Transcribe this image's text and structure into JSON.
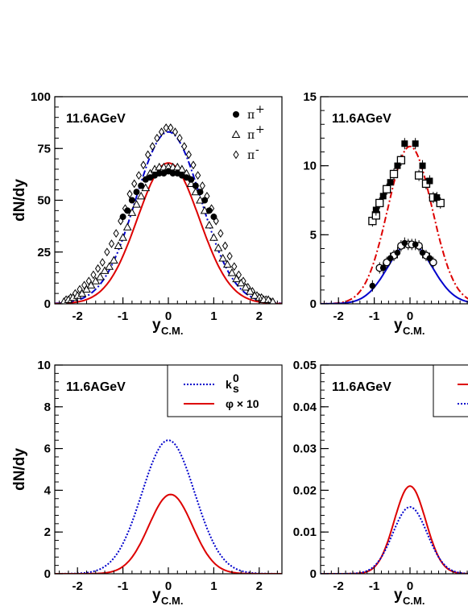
{
  "chart_data": [
    {
      "type": "scatter",
      "ylabel": "dN/dy",
      "xlabel": "y",
      "xlabel_sub": "C.M.",
      "annotation": "11.6AGeV",
      "xlim": [
        -2.5,
        2.5
      ],
      "ylim": [
        0,
        100
      ],
      "xticks": [
        "-2",
        "-1",
        "0",
        "1",
        "2"
      ],
      "yticks": [
        "0",
        "25",
        "50",
        "75",
        "100"
      ],
      "legend": [
        {
          "marker": "circle",
          "label": "π",
          "sup": "+"
        },
        {
          "marker": "triangle",
          "label": "π",
          "sup": "+"
        },
        {
          "marker": "diamond",
          "label": "π",
          "sup": "-"
        }
      ],
      "series": [
        {
          "marker": "diamond",
          "x": [
            -2.25,
            -2.15,
            -2.05,
            -1.95,
            -1.85,
            -1.75,
            -1.65,
            -1.55,
            -1.45,
            -1.35,
            -1.25,
            -1.15,
            -1.05,
            -0.95,
            -0.85,
            -0.75,
            -0.65,
            -0.55,
            -0.45,
            -0.35,
            -0.25,
            -0.15,
            -0.05,
            0.05,
            0.15,
            0.25,
            0.35,
            0.45,
            0.55,
            0.65,
            0.75,
            0.85,
            0.95,
            1.05,
            1.15,
            1.25,
            1.35,
            1.45,
            1.55,
            1.65,
            1.75,
            1.85,
            1.95,
            2.05,
            2.15,
            2.25
          ],
          "y": [
            2,
            3,
            5,
            7,
            9,
            11,
            14,
            17,
            20,
            25,
            29,
            34,
            40,
            46,
            53,
            58,
            62,
            67,
            72,
            76,
            80,
            83,
            85,
            85,
            83,
            80,
            76,
            72,
            67,
            62,
            57,
            52,
            46,
            40,
            34,
            28,
            23,
            18,
            14,
            11,
            8,
            6,
            4,
            3,
            2,
            1
          ]
        },
        {
          "marker": "triangle",
          "x": [
            -2.3,
            -2.2,
            -2.1,
            -2.0,
            -1.9,
            -1.8,
            -1.7,
            -1.6,
            -1.5,
            -1.4,
            -1.3,
            -1.2,
            -1.1,
            -1.0,
            -0.9,
            -0.8,
            -0.7,
            -0.6,
            -0.5,
            -0.4,
            -0.3,
            -0.2,
            -0.1,
            0.0,
            0.1,
            0.2,
            0.3,
            0.4,
            0.5,
            0.6,
            0.7,
            0.8,
            0.9,
            1.0,
            1.1,
            1.2,
            1.3,
            1.4,
            1.5,
            1.6,
            1.7,
            1.8,
            1.9,
            2.0,
            2.1,
            2.2,
            2.3
          ],
          "y": [
            1,
            2,
            3,
            4,
            5,
            7,
            9,
            11,
            13,
            16,
            18,
            21,
            28,
            32,
            37,
            44,
            48,
            52,
            56,
            63,
            65,
            66,
            66,
            66,
            66,
            66,
            65,
            63,
            58,
            54,
            50,
            45,
            38,
            32,
            27,
            22,
            19,
            15,
            12,
            10,
            8,
            6,
            4,
            3,
            2,
            2,
            1
          ]
        },
        {
          "marker": "circle",
          "x": [
            -1.0,
            -0.9,
            -0.8,
            -0.7,
            -0.6,
            -0.5,
            -0.4,
            -0.3,
            -0.2,
            -0.1,
            0.0,
            0.1,
            0.2,
            0.3,
            0.4,
            0.5,
            0.6,
            0.7,
            0.8,
            0.9,
            1.0
          ],
          "y": [
            42,
            45,
            50,
            54,
            57,
            60,
            61,
            62,
            63,
            63,
            64,
            63,
            63,
            62,
            61,
            60,
            57,
            54,
            50,
            45,
            42
          ]
        }
      ],
      "curves": [
        {
          "style": "dashdot",
          "color": "#0000cc",
          "sigma": 0.72,
          "peak": 83
        },
        {
          "style": "solid",
          "color": "#dd0000",
          "sigma": 0.68,
          "peak": 68
        }
      ]
    },
    {
      "type": "scatter",
      "xlabel": "y",
      "xlabel_sub": "C.M.",
      "annotation": "11.6AGeV",
      "xlim": [
        -2.5,
        2.5
      ],
      "ylim": [
        0,
        15
      ],
      "xticks": [
        "-2",
        "-1",
        "0"
      ],
      "yticks": [
        "0",
        "5",
        "10",
        "15"
      ],
      "series": [
        {
          "marker": "square-open",
          "x": [
            -1.05,
            -0.95,
            -0.85,
            -0.65,
            -0.45,
            -0.25,
            0.25,
            0.45,
            0.65,
            0.85
          ],
          "y": [
            6.0,
            6.4,
            7.3,
            8.3,
            9.4,
            10.4,
            9.3,
            8.7,
            7.7,
            7.3
          ]
        },
        {
          "marker": "square-filled",
          "x": [
            -0.95,
            -0.75,
            -0.55,
            -0.35,
            -0.15,
            0.15,
            0.35,
            0.55,
            0.75
          ],
          "y": [
            6.8,
            7.8,
            8.8,
            10.0,
            11.6,
            11.6,
            10.0,
            8.9,
            7.7
          ]
        },
        {
          "marker": "circle-open",
          "x": [
            -0.85,
            -0.65,
            -0.45,
            -0.25,
            -0.05,
            0.05,
            0.25,
            0.45,
            0.65
          ],
          "y": [
            2.6,
            3.0,
            3.5,
            4.2,
            4.3,
            4.3,
            4.2,
            3.5,
            3.0
          ]
        },
        {
          "marker": "circle-filled",
          "x": [
            -1.05,
            -0.75,
            -0.55,
            -0.35,
            -0.15,
            0.15,
            0.35,
            0.55
          ],
          "y": [
            1.3,
            2.6,
            3.3,
            3.7,
            4.4,
            4.3,
            3.7,
            3.3
          ]
        }
      ],
      "curves": [
        {
          "style": "dashdot",
          "color": "#dd0000",
          "sigma": 0.62,
          "peak": 11.4
        },
        {
          "style": "solid",
          "color": "#0000cc",
          "sigma": 0.62,
          "peak": 4.4
        }
      ]
    },
    {
      "type": "line",
      "ylabel": "dN/dy",
      "xlabel": "y",
      "xlabel_sub": "C.M.",
      "annotation": "11.6AGeV",
      "xlim": [
        -2.5,
        2.5
      ],
      "ylim": [
        0,
        10
      ],
      "xticks": [
        "-2",
        "-1",
        "0",
        "1",
        "2"
      ],
      "yticks": [
        "0",
        "2",
        "4",
        "6",
        "8",
        "10"
      ],
      "legend": [
        {
          "style": "dotted",
          "color": "#0000cc",
          "label": "k",
          "sub": "s",
          "sup": "0"
        },
        {
          "style": "solid",
          "color": "#dd0000",
          "label": "φ × 10"
        }
      ],
      "curves": [
        {
          "style": "dotted",
          "color": "#0000cc",
          "sigma": 0.58,
          "peak": 6.4
        },
        {
          "style": "solid",
          "color": "#dd0000",
          "sigma": 0.48,
          "peak": 3.8,
          "shift": 0.05
        }
      ]
    },
    {
      "type": "line",
      "xlabel": "y",
      "xlabel_sub": "C.M.",
      "annotation": "11.6AGeV",
      "xlim": [
        -2.5,
        2.5
      ],
      "ylim": [
        0,
        0.05
      ],
      "xticks": [
        "-2",
        "-1",
        "0"
      ],
      "yticks": [
        "0",
        "0.01",
        "0.02",
        "0.03",
        "0.04",
        "0.05"
      ],
      "curves": [
        {
          "style": "solid",
          "color": "#dd0000",
          "sigma": 0.44,
          "peak": 0.021
        },
        {
          "style": "dotted",
          "color": "#0000cc",
          "sigma": 0.48,
          "peak": 0.016
        }
      ]
    }
  ]
}
